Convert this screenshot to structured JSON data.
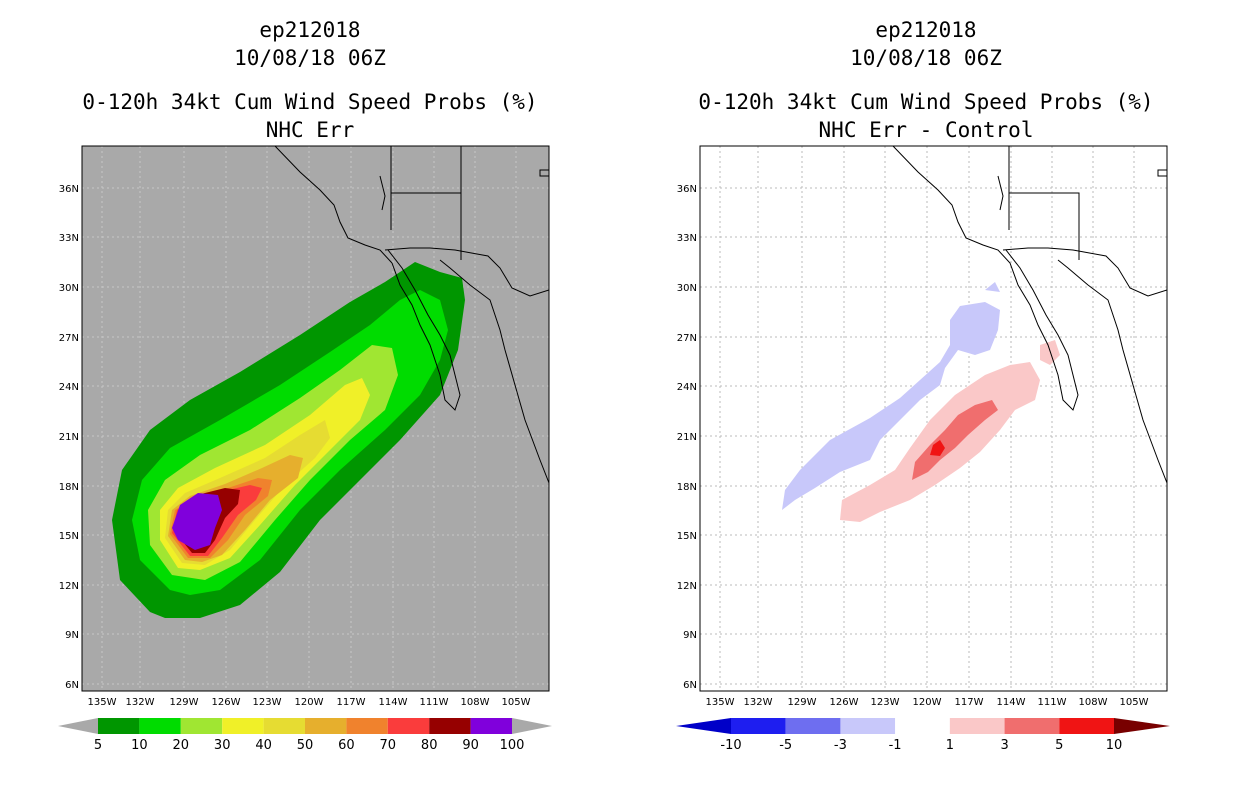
{
  "left_panel": {
    "title_line1": "ep212018",
    "title_line2": "10/08/18 06Z",
    "title_line3": "0-120h 34kt Cum Wind Speed Probs (%)",
    "title_line4": "NHC Err",
    "background_color": "#a9a9a9",
    "legend": {
      "colors": [
        "#009600",
        "#00dc00",
        "#a0e632",
        "#f0f028",
        "#e6dc32",
        "#e6af2d",
        "#f0822d",
        "#fa3c3c",
        "#960000",
        "#8000dc"
      ],
      "labels": [
        "5",
        "10",
        "20",
        "30",
        "40",
        "50",
        "60",
        "70",
        "80",
        "90",
        "100"
      ]
    }
  },
  "right_panel": {
    "title_line1": "ep212018",
    "title_line2": "10/08/18 06Z",
    "title_line3": "0-120h 34kt Cum Wind Speed Probs (%)",
    "title_line4": "NHC Err - Control",
    "background_color": "#ffffff",
    "legend": {
      "colors": [
        "#0000c8",
        "#1e1ef0",
        "#6e6ef0",
        "#c8c8fa",
        "#ffffff",
        "#fac8c8",
        "#f06e6e",
        "#f01414",
        "#780000"
      ],
      "labels": [
        "-10",
        "-5",
        "-3",
        "-1",
        "1",
        "3",
        "5",
        "10"
      ]
    }
  },
  "map": {
    "lat_labels": [
      "36N",
      "33N",
      "30N",
      "27N",
      "24N",
      "21N",
      "18N",
      "15N",
      "12N",
      "9N",
      "6N"
    ],
    "lon_labels": [
      "135W",
      "132W",
      "129W",
      "126W",
      "123W",
      "120W",
      "117W",
      "114W",
      "111W",
      "108W",
      "105W"
    ]
  }
}
